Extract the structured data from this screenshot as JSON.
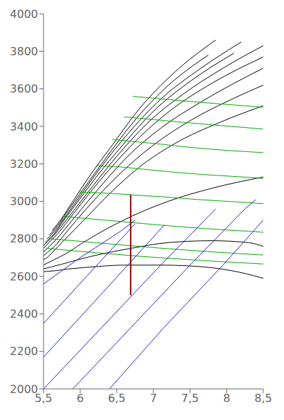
{
  "chart_data": {
    "type": "line",
    "xlim": [
      5.5,
      8.5
    ],
    "ylim": [
      2000,
      4000
    ],
    "xticks": [
      {
        "value": 5.5,
        "label": "5,5"
      },
      6.0,
      {
        "value": 6.5,
        "label": "6,5"
      },
      7.0,
      {
        "value": 7.5,
        "label": "7,5"
      },
      8.0,
      {
        "value": 8.5,
        "label": "8,5"
      }
    ],
    "yticks": [
      2000,
      2200,
      2400,
      2600,
      2800,
      3000,
      3200,
      3400,
      3600,
      3800,
      4000
    ],
    "series": [
      {
        "type": "spline",
        "color": "#000000",
        "x": [
          5.5,
          5.55,
          5.6,
          5.7,
          5.85,
          6.1,
          6.4,
          6.8,
          7.3,
          7.9,
          8.5
        ],
        "values": [
          2690,
          2700,
          2720,
          2760,
          2820,
          2920,
          3040,
          3180,
          3310,
          3420,
          3510
        ]
      },
      {
        "type": "spline",
        "color": "#000000",
        "x": [
          5.5,
          5.56,
          5.65,
          5.78,
          5.95,
          6.2,
          6.55,
          7.0,
          7.5,
          8.1,
          8.5
        ],
        "values": [
          2710,
          2730,
          2760,
          2820,
          2900,
          3010,
          3150,
          3300,
          3430,
          3550,
          3620
        ]
      },
      {
        "type": "spline",
        "color": "#000000",
        "x": [
          5.5,
          5.58,
          5.68,
          5.83,
          6.02,
          6.3,
          6.65,
          7.1,
          7.65,
          8.2,
          8.5
        ],
        "values": [
          2730,
          2760,
          2800,
          2870,
          2960,
          3090,
          3240,
          3390,
          3530,
          3650,
          3710
        ]
      },
      {
        "type": "spline",
        "color": "#000000",
        "x": [
          5.5,
          5.6,
          5.72,
          5.88,
          6.1,
          6.4,
          6.78,
          7.25,
          7.8,
          8.5
        ],
        "values": [
          2750,
          2790,
          2840,
          2920,
          3030,
          3170,
          3330,
          3490,
          3630,
          3770
        ]
      },
      {
        "type": "spline",
        "color": "#000000",
        "x": [
          5.5,
          5.62,
          5.75,
          5.93,
          6.17,
          6.5,
          6.9,
          7.4,
          7.95,
          8.5
        ],
        "values": [
          2765,
          2810,
          2870,
          2960,
          3080,
          3240,
          3410,
          3570,
          3710,
          3830
        ]
      },
      {
        "type": "spline",
        "color": "#000000",
        "x": [
          5.52,
          5.65,
          5.78,
          5.97,
          6.22,
          6.58,
          7.0,
          7.52,
          8.1
        ],
        "values": [
          2780,
          2830,
          2900,
          3000,
          3130,
          3300,
          3480,
          3645,
          3790
        ]
      },
      {
        "type": "spline",
        "color": "#000000",
        "x": [
          5.55,
          5.67,
          5.82,
          6.02,
          6.28,
          6.65,
          7.1,
          7.65,
          8.2
        ],
        "values": [
          2800,
          2850,
          2930,
          3040,
          3180,
          3360,
          3545,
          3710,
          3850
        ]
      },
      {
        "type": "spline",
        "color": "#000000",
        "x": [
          5.58,
          5.7,
          5.85,
          6.07,
          6.35,
          6.72,
          7.18,
          7.75
        ],
        "values": [
          2820,
          2875,
          2960,
          3080,
          3230,
          3420,
          3610,
          3780
        ]
      },
      {
        "type": "spline",
        "color": "#000000",
        "x": [
          5.62,
          5.74,
          5.9,
          6.12,
          6.42,
          6.8,
          7.28,
          7.85
        ],
        "values": [
          2845,
          2905,
          3000,
          3130,
          3290,
          3490,
          3685,
          3860
        ]
      },
      {
        "type": "spline",
        "color": "#000000",
        "x": [
          5.5,
          5.55,
          5.65,
          5.8,
          6.0,
          6.3,
          6.7,
          7.2,
          7.8,
          8.5
        ],
        "values": [
          2660,
          2670,
          2690,
          2720,
          2770,
          2840,
          2920,
          3000,
          3070,
          3130
        ]
      },
      {
        "type": "spline",
        "color": "#000000",
        "x": [
          5.5,
          5.6,
          5.75,
          5.98,
          6.3,
          6.7,
          7.2,
          7.8,
          8.3,
          8.5
        ],
        "values": [
          2640,
          2650,
          2665,
          2690,
          2720,
          2750,
          2780,
          2790,
          2780,
          2760
        ]
      },
      {
        "type": "spline",
        "color": "#000000",
        "x": [
          5.5,
          5.65,
          5.85,
          6.15,
          6.6,
          7.1,
          7.7,
          8.2,
          8.5
        ],
        "values": [
          2625,
          2630,
          2640,
          2650,
          2660,
          2660,
          2650,
          2620,
          2590
        ]
      },
      {
        "type": "spline",
        "color": "#00aa00",
        "x": [
          5.98,
          6.3,
          6.7,
          7.1,
          7.6,
          8.1,
          8.5
        ],
        "values": [
          3050,
          3045,
          3035,
          3025,
          3010,
          2998,
          2988
        ]
      },
      {
        "type": "spline",
        "color": "#00aa00",
        "x": [
          6.22,
          6.5,
          6.9,
          7.3,
          7.8,
          8.3,
          8.5
        ],
        "values": [
          3190,
          3185,
          3170,
          3155,
          3140,
          3128,
          3122
        ]
      },
      {
        "type": "spline",
        "color": "#00aa00",
        "x": [
          6.44,
          6.7,
          7.1,
          7.5,
          8.0,
          8.5
        ],
        "values": [
          3330,
          3320,
          3305,
          3288,
          3272,
          3260
        ]
      },
      {
        "type": "spline",
        "color": "#00aa00",
        "x": [
          6.6,
          6.9,
          7.3,
          7.8,
          8.3,
          8.5
        ],
        "values": [
          3450,
          3440,
          3425,
          3408,
          3392,
          3385
        ]
      },
      {
        "type": "spline",
        "color": "#00aa00",
        "x": [
          5.77,
          6.05,
          6.4,
          6.85,
          7.35,
          7.9,
          8.4,
          8.5
        ],
        "values": [
          2920,
          2910,
          2898,
          2882,
          2865,
          2850,
          2838,
          2835
        ]
      },
      {
        "type": "spline",
        "color": "#00aa00",
        "x": [
          5.6,
          5.85,
          6.15,
          6.55,
          7.05,
          7.6,
          8.15,
          8.5
        ],
        "values": [
          2800,
          2792,
          2782,
          2768,
          2752,
          2736,
          2722,
          2714
        ]
      },
      {
        "type": "spline",
        "color": "#00aa00",
        "x": [
          5.54,
          5.72,
          5.98,
          6.35,
          6.82,
          7.38,
          7.95,
          8.5
        ],
        "values": [
          2750,
          2743,
          2734,
          2722,
          2707,
          2692,
          2678,
          2666
        ]
      },
      {
        "type": "spline",
        "color": "#00aa00",
        "x": [
          6.72,
          7.0,
          7.4,
          7.9,
          8.4,
          8.5
        ],
        "values": [
          3560,
          3550,
          3536,
          3520,
          3505,
          3502
        ]
      },
      {
        "type": "line",
        "color": "#2222cc",
        "x": [
          5.5,
          6.3,
          6.75
        ],
        "values": [
          2350,
          2690,
          2880
        ]
      },
      {
        "type": "line",
        "color": "#2222cc",
        "x": [
          5.5,
          6.3,
          7.0,
          7.15
        ],
        "values": [
          2170,
          2510,
          2810,
          2875
        ]
      },
      {
        "type": "line",
        "color": "#2222cc",
        "x": [
          5.5,
          6.3,
          7.1,
          7.75,
          7.85
        ],
        "values": [
          2000,
          2330,
          2660,
          2920,
          2960
        ]
      },
      {
        "type": "line",
        "color": "#2222cc",
        "x": [
          5.9,
          6.7,
          7.5,
          8.25,
          8.4
        ],
        "values": [
          2000,
          2330,
          2660,
          2960,
          3010
        ]
      },
      {
        "type": "line",
        "color": "#2222cc",
        "x": [
          6.4,
          7.15,
          7.95,
          8.5
        ],
        "values": [
          2000,
          2330,
          2660,
          2900
        ]
      },
      {
        "type": "line",
        "color": "#2222cc",
        "x": [
          5.5,
          6.0,
          6.55,
          6.75
        ],
        "values": [
          2560,
          2700,
          2840,
          2900
        ]
      },
      {
        "type": "line",
        "color": "#8b0000",
        "x": [
          6.69,
          6.69
        ],
        "values": [
          2499.4,
          3036.2
        ]
      }
    ]
  }
}
